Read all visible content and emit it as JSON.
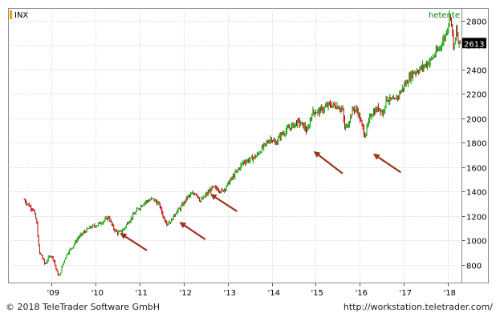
{
  "chart_data": {
    "type": "ohlc",
    "symbol": "INX",
    "source_label": "hetente",
    "current_value": "2613",
    "y_ticks": [
      800,
      1000,
      1200,
      1400,
      1600,
      1800,
      2000,
      2200,
      2400,
      2600,
      2800
    ],
    "ylim": [
      650,
      2900
    ],
    "x_ticks": [
      "'09",
      "'10",
      "'11",
      "'12",
      "'13",
      "'14",
      "'15",
      "'16",
      "'17",
      "'18"
    ],
    "x_tick_years": [
      2009,
      2010,
      2011,
      2012,
      2013,
      2014,
      2015,
      2016,
      2017,
      2018
    ],
    "xlim": [
      2008.02,
      2018.32
    ],
    "grid": true,
    "series_anchors": [
      [
        2008.38,
        1330
      ],
      [
        2008.45,
        1300
      ],
      [
        2008.52,
        1270
      ],
      [
        2008.58,
        1260
      ],
      [
        2008.66,
        1150
      ],
      [
        2008.72,
        900
      ],
      [
        2008.78,
        870
      ],
      [
        2008.85,
        800
      ],
      [
        2008.92,
        850
      ],
      [
        2008.98,
        880
      ],
      [
        2009.05,
        840
      ],
      [
        2009.12,
        740
      ],
      [
        2009.18,
        700
      ],
      [
        2009.25,
        800
      ],
      [
        2009.35,
        890
      ],
      [
        2009.5,
        960
      ],
      [
        2009.6,
        1020
      ],
      [
        2009.75,
        1070
      ],
      [
        2009.9,
        1110
      ],
      [
        2010.0,
        1120
      ],
      [
        2010.15,
        1150
      ],
      [
        2010.3,
        1190
      ],
      [
        2010.4,
        1100
      ],
      [
        2010.5,
        1060
      ],
      [
        2010.62,
        1080
      ],
      [
        2010.72,
        1140
      ],
      [
        2010.85,
        1200
      ],
      [
        2010.95,
        1250
      ],
      [
        2011.1,
        1310
      ],
      [
        2011.3,
        1340
      ],
      [
        2011.45,
        1290
      ],
      [
        2011.55,
        1180
      ],
      [
        2011.62,
        1140
      ],
      [
        2011.72,
        1160
      ],
      [
        2011.82,
        1230
      ],
      [
        2011.92,
        1260
      ],
      [
        2012.1,
        1360
      ],
      [
        2012.28,
        1390
      ],
      [
        2012.38,
        1320
      ],
      [
        2012.48,
        1360
      ],
      [
        2012.65,
        1430
      ],
      [
        2012.78,
        1420
      ],
      [
        2012.88,
        1400
      ],
      [
        2013.0,
        1460
      ],
      [
        2013.2,
        1560
      ],
      [
        2013.35,
        1640
      ],
      [
        2013.5,
        1660
      ],
      [
        2013.65,
        1690
      ],
      [
        2013.8,
        1760
      ],
      [
        2013.99,
        1840
      ],
      [
        2014.08,
        1790
      ],
      [
        2014.2,
        1860
      ],
      [
        2014.4,
        1920
      ],
      [
        2014.6,
        1970
      ],
      [
        2014.75,
        1930
      ],
      [
        2014.8,
        1880
      ],
      [
        2014.92,
        2050
      ],
      [
        2015.1,
        2060
      ],
      [
        2015.3,
        2110
      ],
      [
        2015.5,
        2100
      ],
      [
        2015.62,
        2060
      ],
      [
        2015.65,
        1920
      ],
      [
        2015.72,
        1940
      ],
      [
        2015.85,
        2080
      ],
      [
        2015.95,
        2060
      ],
      [
        2016.05,
        1940
      ],
      [
        2016.12,
        1860
      ],
      [
        2016.25,
        2030
      ],
      [
        2016.45,
        2090
      ],
      [
        2016.52,
        2030
      ],
      [
        2016.6,
        2160
      ],
      [
        2016.8,
        2140
      ],
      [
        2016.88,
        2190
      ],
      [
        2017.0,
        2260
      ],
      [
        2017.2,
        2370
      ],
      [
        2017.4,
        2410
      ],
      [
        2017.6,
        2470
      ],
      [
        2017.8,
        2570
      ],
      [
        2017.95,
        2680
      ],
      [
        2018.06,
        2860
      ],
      [
        2018.1,
        2700
      ],
      [
        2018.14,
        2560
      ],
      [
        2018.2,
        2740
      ],
      [
        2018.24,
        2600
      ],
      [
        2018.28,
        2613
      ]
    ],
    "annotation_arrows": [
      {
        "tail": [
          2011.15,
          920
        ],
        "head": [
          2010.55,
          1060
        ]
      },
      {
        "tail": [
          2012.48,
          1010
        ],
        "head": [
          2011.9,
          1150
        ]
      },
      {
        "tail": [
          2013.2,
          1240
        ],
        "head": [
          2012.6,
          1380
        ]
      },
      {
        "tail": [
          2015.6,
          1550
        ],
        "head": [
          2014.95,
          1730
        ]
      },
      {
        "tail": [
          2016.92,
          1560
        ],
        "head": [
          2016.3,
          1710
        ]
      }
    ]
  },
  "colors": {
    "up_bar": "#00a000",
    "down_bar": "#c00000",
    "arrow": "#a0331d",
    "symbol_marker": "#f0a000",
    "current_label_bg": "#000000",
    "current_label_text": "#ffffff",
    "source_label": "#008000",
    "grid": "#c8c8c8"
  },
  "footer": {
    "copyright": "© 2018 TeleTrader Software GmbH",
    "url": "http://workstation.teletrader.com/"
  }
}
